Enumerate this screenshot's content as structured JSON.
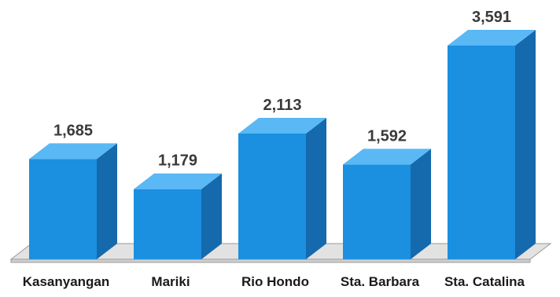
{
  "chart_data": {
    "type": "bar",
    "categories": [
      "Kasanyangan",
      "Mariki",
      "Rio Hondo",
      "Sta. Barbara",
      "Sta. Catalina"
    ],
    "values": [
      1685,
      1179,
      2113,
      1592,
      3591
    ],
    "value_labels": [
      "1,685",
      "1,179",
      "2,113",
      "1,592",
      "3,591"
    ],
    "title": "",
    "xlabel": "",
    "ylabel": "",
    "ylim": [
      0,
      3591
    ],
    "grid": false,
    "legend": "none",
    "style": "3d-bar",
    "colors": {
      "front": "#1b8fe0",
      "side": "#1569ad",
      "top": "#5ab8f5",
      "floor": "#e2e2e2"
    }
  }
}
